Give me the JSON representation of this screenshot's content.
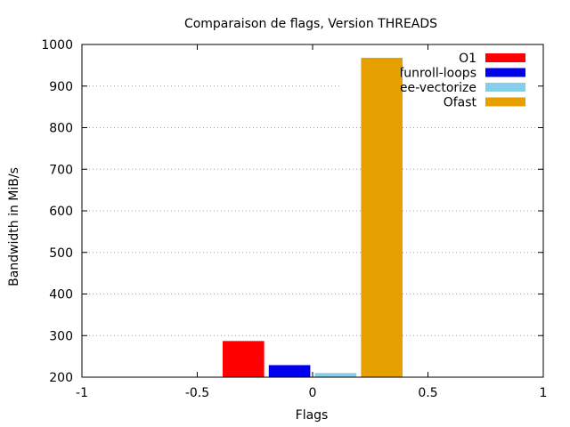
{
  "chart_data": {
    "type": "bar",
    "title": "Comparaison de flags, Version THREADS",
    "xlabel": "Flags",
    "ylabel": "Bandwidth in MiB/s",
    "xlim": [
      -1,
      1
    ],
    "ylim": [
      200,
      1000
    ],
    "x_ticks": [
      -1,
      -0.5,
      0,
      0.5,
      1
    ],
    "x_tick_labels": [
      "-1",
      "-0.5",
      "0",
      "0.5",
      "1"
    ],
    "y_ticks": [
      200,
      300,
      400,
      500,
      600,
      700,
      800,
      900,
      1000
    ],
    "y_tick_labels": [
      "200",
      "300",
      "400",
      "500",
      "600",
      "700",
      "800",
      "900",
      "1000"
    ],
    "grid": "horizontal dotted",
    "legend_position": "top-right",
    "bar_width": 0.18,
    "series": [
      {
        "name": "O1",
        "x": -0.3,
        "value": 287,
        "color": "#ff0000"
      },
      {
        "name": "funroll-loops",
        "x": -0.1,
        "value": 229,
        "color": "#0000ee"
      },
      {
        "name": "ftree-vectorize",
        "x": 0.1,
        "value": 210,
        "color": "#87ceeb"
      },
      {
        "name": "Ofast",
        "x": 0.3,
        "value": 968,
        "color": "#e5a000"
      }
    ]
  }
}
